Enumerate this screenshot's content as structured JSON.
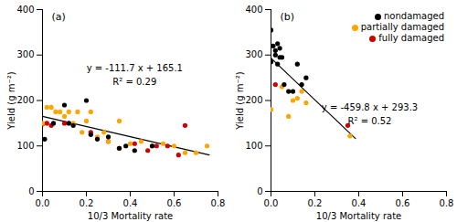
{
  "chart_data": [
    {
      "type": "scatter",
      "title": "(a)",
      "xlabel": "10/3 Mortality rate",
      "ylabel": "Yield (g m⁻²)",
      "xlim": [
        0,
        0.8
      ],
      "ylim": [
        0,
        400
      ],
      "xticks": [
        {
          "value": 0,
          "label": "0.0"
        },
        0.2,
        0.4,
        0.6,
        0.8
      ],
      "yticks": [
        0,
        100,
        200,
        300,
        400
      ],
      "grid": false,
      "legend": false,
      "series": [
        {
          "name": "nondamaged",
          "color": "#000000",
          "x": [
            0.01,
            0.05,
            0.1,
            0.12,
            0.14,
            0.2,
            0.22,
            0.25,
            0.3,
            0.35,
            0.38,
            0.42,
            0.5
          ],
          "values": [
            115,
            150,
            190,
            150,
            145,
            200,
            125,
            115,
            120,
            95,
            100,
            90,
            100
          ]
        },
        {
          "name": "partially damaged",
          "color": "#FFA500",
          "x": [
            0.0,
            0.02,
            0.04,
            0.06,
            0.08,
            0.1,
            0.12,
            0.14,
            0.16,
            0.18,
            0.2,
            0.22,
            0.25,
            0.28,
            0.3,
            0.35,
            0.4,
            0.45,
            0.5,
            0.55,
            0.6,
            0.65,
            0.7,
            0.75
          ],
          "values": [
            150,
            185,
            185,
            175,
            175,
            165,
            175,
            150,
            175,
            130,
            155,
            175,
            120,
            130,
            110,
            155,
            105,
            110,
            100,
            105,
            100,
            85,
            85,
            100
          ]
        },
        {
          "name": "fully damaged",
          "color": "#CC0000",
          "x": [
            0.0,
            0.02,
            0.04,
            0.1,
            0.22,
            0.3,
            0.35,
            0.42,
            0.48,
            0.52,
            0.57,
            0.62,
            0.65
          ],
          "values": [
            148,
            150,
            145,
            150,
            130,
            110,
            95,
            105,
            90,
            100,
            100,
            80,
            145
          ]
        },
        {
          "type": "line",
          "color": "#000000",
          "x": [
            0.0,
            0.76
          ],
          "values": [
            165.1,
            80.208
          ]
        }
      ],
      "annotations": [
        {
          "text": "y = -111.7 x + 165.1",
          "x": 0.42,
          "y": 270
        },
        {
          "text": "R² = 0.29",
          "x": 0.42,
          "y": 240
        }
      ]
    },
    {
      "type": "scatter",
      "title": "(b)",
      "xlabel": "10/3 Mortality rate",
      "ylabel": "Yield (g m⁻²)",
      "xlim": [
        0,
        0.8
      ],
      "ylim": [
        0,
        400
      ],
      "xticks": [
        {
          "value": 0,
          "label": "0.0"
        },
        0.2,
        0.4,
        0.6,
        0.8
      ],
      "yticks": [
        0,
        100,
        200,
        300,
        400
      ],
      "grid": false,
      "legend": "upper right",
      "series": [
        {
          "name": "nondamaged",
          "color": "#000000",
          "x": [
            0.0,
            0.0,
            0.01,
            0.02,
            0.02,
            0.03,
            0.03,
            0.04,
            0.04,
            0.05,
            0.06,
            0.08,
            0.1,
            0.12,
            0.14,
            0.16
          ],
          "values": [
            355,
            285,
            320,
            310,
            300,
            325,
            280,
            315,
            295,
            295,
            235,
            220,
            220,
            280,
            235,
            250
          ]
        },
        {
          "name": "partially damaged",
          "color": "#FFA500",
          "x": [
            0.0,
            0.05,
            0.08,
            0.1,
            0.12,
            0.14,
            0.16,
            0.36
          ],
          "values": [
            180,
            230,
            165,
            200,
            205,
            220,
            195,
            122
          ]
        },
        {
          "name": "fully damaged",
          "color": "#CC0000",
          "x": [
            0.02,
            0.35
          ],
          "values": [
            235,
            145
          ]
        },
        {
          "type": "line",
          "color": "#000000",
          "x": [
            0.0,
            0.385
          ],
          "values": [
            293.3,
            116.277
          ]
        }
      ],
      "annotations": [
        {
          "text": "y = -459.8 x + 293.3",
          "x": 0.45,
          "y": 185
        },
        {
          "text": "R² = 0.52",
          "x": 0.45,
          "y": 155
        }
      ]
    }
  ]
}
